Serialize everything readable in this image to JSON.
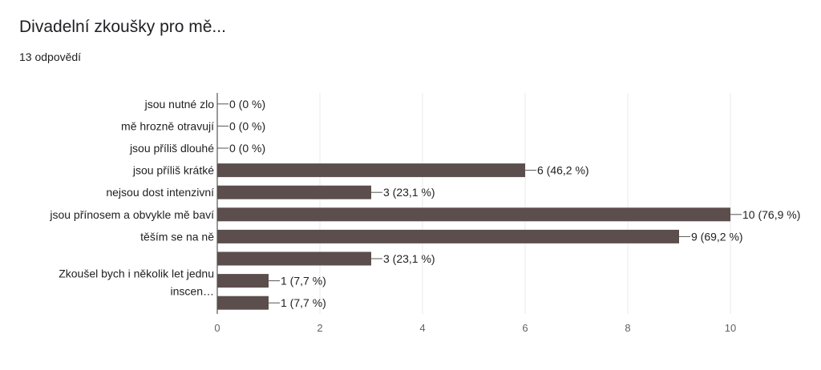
{
  "header": {
    "title": "Divadelní zkoušky pro mě...",
    "responses": "13 odpovědí"
  },
  "chart_data": {
    "type": "bar",
    "orientation": "horizontal",
    "categories": [
      "jsou nutné zlo",
      "mě hrozně otravují",
      "jsou příliš dlouhé",
      "jsou příliš krátké",
      "nejsou dost intenzivní",
      "jsou přínosem a obvykle mě baví",
      "těším se na ně",
      "",
      "Zkoušel bych i několik let jednu inscen…",
      ""
    ],
    "category_label_lines": [
      [
        "jsou nutné zlo"
      ],
      [
        "mě hrozně otravují"
      ],
      [
        "jsou příliš dlouhé"
      ],
      [
        "jsou příliš krátké"
      ],
      [
        "nejsou dost intenzivní"
      ],
      [
        "jsou přínosem a obvykle mě baví"
      ],
      [
        "těším se na ně"
      ],
      [],
      [
        "Zkoušel bych i několik let jednu",
        "inscen…"
      ],
      []
    ],
    "values": [
      0,
      0,
      0,
      6,
      3,
      10,
      9,
      3,
      1,
      1
    ],
    "data_labels": [
      "0 (0 %)",
      "0 (0 %)",
      "0 (0 %)",
      "6 (46,2 %)",
      "3 (23,1 %)",
      "10 (76,9 %)",
      "9 (69,2 %)",
      "3 (23,1 %)",
      "1 (7,7 %)",
      "1 (7,7 %)"
    ],
    "xlim": [
      0,
      10
    ],
    "xticks": [
      0,
      2,
      4,
      6,
      8,
      10
    ],
    "grid": true,
    "bar_color": "#5b4e4c",
    "grid_color": "#e8e8e8"
  }
}
